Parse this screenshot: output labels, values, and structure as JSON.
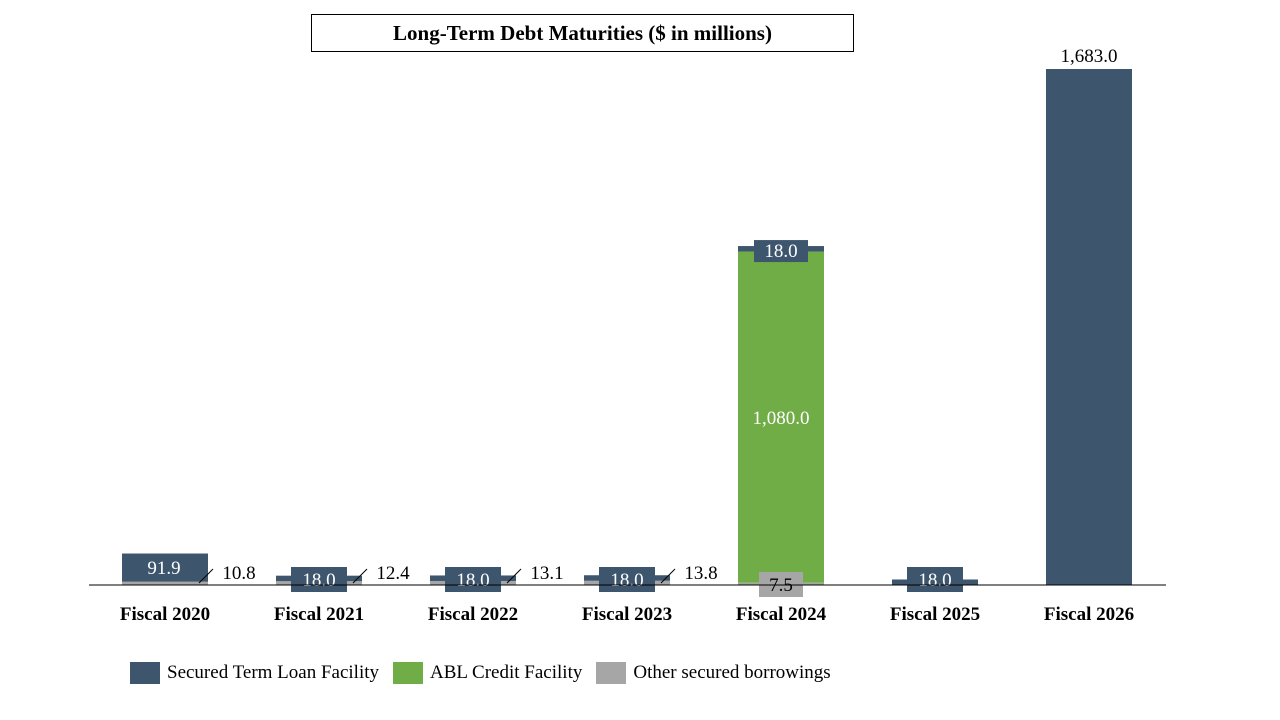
{
  "chart_data": {
    "type": "bar",
    "stacked": true,
    "title": "Long-Term Debt Maturities ($ in millions)",
    "categories": [
      "Fiscal 2020",
      "Fiscal 2021",
      "Fiscal 2022",
      "Fiscal 2023",
      "Fiscal 2024",
      "Fiscal 2025",
      "Fiscal 2026"
    ],
    "series": [
      {
        "name": "Other secured borrowings",
        "color": "#a6a6a6",
        "values": [
          10.8,
          12.4,
          13.1,
          13.8,
          7.5,
          0,
          0
        ],
        "labels": [
          "10.8",
          "12.4",
          "13.1",
          "13.8",
          "7.5",
          "",
          ""
        ]
      },
      {
        "name": "ABL Credit Facility",
        "color": "#70ad47",
        "values": [
          0,
          0,
          0,
          0,
          1080.0,
          0,
          0
        ],
        "labels": [
          "",
          "",
          "",
          "",
          "1,080.0",
          "",
          ""
        ]
      },
      {
        "name": "Secured Term Loan Facility",
        "color": "#3d566e",
        "values": [
          91.9,
          18.0,
          18.0,
          18.0,
          18.0,
          18.0,
          1683.0
        ],
        "labels": [
          "91.9",
          "18.0",
          "18.0",
          "18.0",
          "18.0",
          "18.0",
          "1,683.0"
        ]
      }
    ],
    "legend_order": [
      "Secured Term Loan Facility",
      "ABL Credit Facility",
      "Other secured borrowings"
    ],
    "legend_position": "bottom-left",
    "ylim": [
      0,
      1683.0
    ],
    "grid": false
  }
}
